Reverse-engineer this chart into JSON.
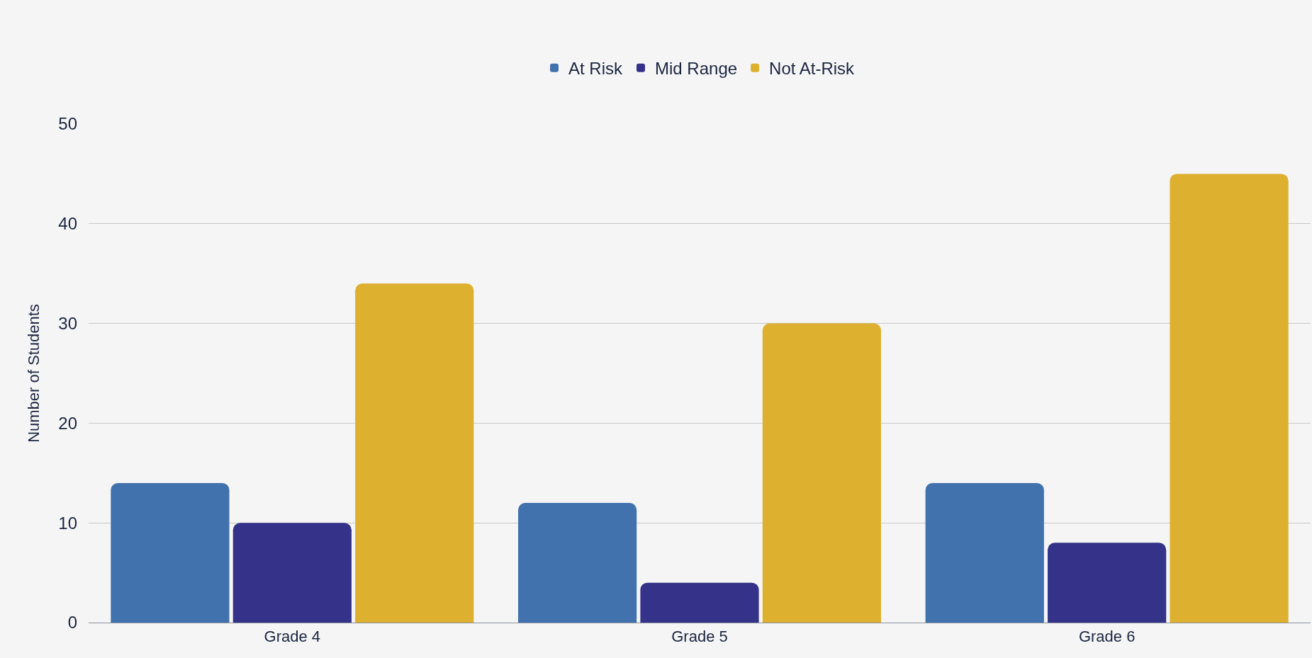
{
  "chart_data": {
    "type": "bar",
    "ylabel": "Number of Students",
    "categories": [
      "Grade 4",
      "Grade 5",
      "Grade 6"
    ],
    "series": [
      {
        "name": "At Risk",
        "color": "#4272ae",
        "values": [
          14,
          12,
          14
        ]
      },
      {
        "name": "Mid Range",
        "color": "#35328a",
        "values": [
          10,
          4,
          8
        ]
      },
      {
        "name": "Not At-Risk",
        "color": "#ddb02f",
        "values": [
          34,
          30,
          45
        ]
      }
    ],
    "ylim": [
      0,
      50
    ],
    "yticks": [
      0,
      10,
      20,
      30,
      40,
      50
    ],
    "grid": "y",
    "legend": "top"
  }
}
